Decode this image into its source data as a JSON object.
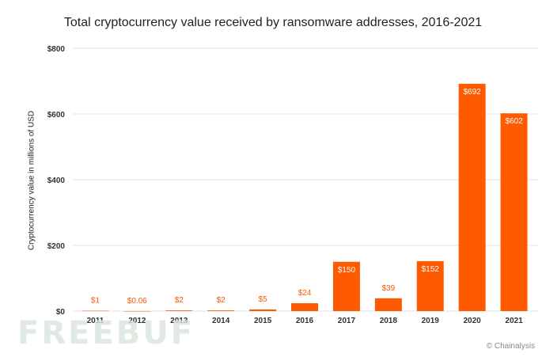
{
  "watermark": "FREEBUF",
  "source": "© Chainalysis",
  "colors": {
    "bar": "#ff5a00",
    "label_outside": "#ff5a00",
    "label_inside": "#ffffff",
    "grid": "#e3e3e3"
  },
  "chart_data": {
    "type": "bar",
    "title": "Total cryptocurrency value received by ransomware addresses, 2016-2021",
    "xlabel": "",
    "ylabel": "Cryptocurrency value in millions of  USD",
    "ylim": [
      0,
      800
    ],
    "yticks": [
      0,
      200,
      400,
      600,
      800
    ],
    "ytick_labels": [
      "$0",
      "$200",
      "$400",
      "$600",
      "$800"
    ],
    "categories": [
      "2011",
      "2012",
      "2013",
      "2014",
      "2015",
      "2016",
      "2017",
      "2018",
      "2019",
      "2020",
      "2021"
    ],
    "values": [
      1,
      0.06,
      2,
      2,
      5,
      24,
      150,
      39,
      152,
      692,
      602
    ],
    "data_labels": [
      "$1",
      "$0.06",
      "$2",
      "$2",
      "$5",
      "$24",
      "$150",
      "$39",
      "$152",
      "$692",
      "$602"
    ],
    "grid": true
  }
}
